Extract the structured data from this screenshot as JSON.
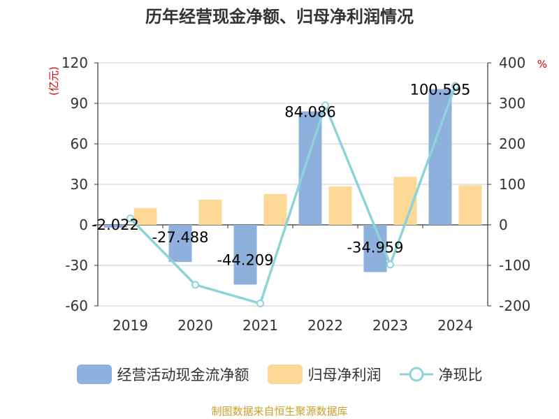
{
  "chart_data": {
    "type": "bar",
    "title": "历年经营现金净额、归母净利润情况",
    "categories": [
      "2019",
      "2020",
      "2021",
      "2022",
      "2023",
      "2024"
    ],
    "series": [
      {
        "name": "经营活动现金流净额",
        "kind": "bar",
        "axis": "left",
        "color": "#8eb0dc",
        "values": [
          -2.022,
          -27.488,
          -44.209,
          84.086,
          -34.959,
          100.595
        ],
        "labels": [
          "-2.022",
          "-27.488",
          "-44.209",
          "84.086",
          "-34.959",
          "100.595"
        ]
      },
      {
        "name": "归母净利润",
        "kind": "bar",
        "axis": "left",
        "color": "#fdd896",
        "values": [
          12.5,
          18.6,
          22.8,
          28.5,
          35.5,
          29.3
        ]
      },
      {
        "name": "净现比",
        "kind": "line",
        "axis": "right",
        "color": "#8dd3da",
        "values": [
          16,
          -148,
          -194,
          295,
          -98,
          343
        ]
      }
    ],
    "y_left": {
      "unit": "(亿元)",
      "min": -60,
      "max": 120,
      "ticks": [
        120,
        90,
        60,
        30,
        0,
        -30,
        -60
      ]
    },
    "y_right": {
      "unit": "%",
      "min": -200,
      "max": 400,
      "ticks": [
        400,
        300,
        200,
        100,
        0,
        -100,
        -200
      ]
    },
    "grid": true,
    "legend_position": "bottom"
  },
  "source": "制图数据来自恒生聚源数据库"
}
